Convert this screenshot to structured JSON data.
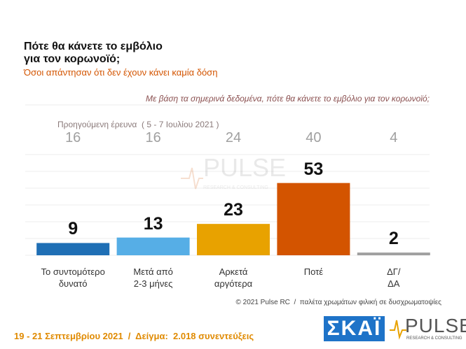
{
  "chart_data": {
    "type": "bar",
    "title": [
      "Πότε θα κάνετε το εμβόλιο",
      "για τον κορωνοϊό;"
    ],
    "subtitle": "Όσοι απάντησαν ότι δεν έχουν κάνει καμία δόση",
    "question": "Με βάση τα σημερινά δεδομένα, πότε θα κάνετε το εμβόλιο για τον κορωνοϊό;",
    "categories": [
      "Το συντομότερο\nδυνατό",
      "Μετά από\n2-3 μήνες",
      "Αρκετά\nαργότερα",
      "Ποτέ",
      "ΔΓ/\nΔΑ"
    ],
    "values": [
      9,
      13,
      23,
      53,
      2
    ],
    "colors": [
      "#1f6fb5",
      "#56aee6",
      "#e8a200",
      "#d35400",
      "#a0a0a0"
    ],
    "previous": {
      "label": "Προηγούμενη έρευνα  ( 5 - 7 Ιουλίου 2021 )",
      "values": [
        16,
        16,
        24,
        40,
        4
      ]
    },
    "ylim": [
      0,
      60
    ],
    "footnote": "© 2021 Pulse RC  /  παλέτα χρωμάτων φιλική σε δυσχρωματοψίες",
    "bottom_note": "19 - 21 Σεπτεμβρίου 2021  /  Δείγμα:  2.018 συνεντεύξεις",
    "logos": {
      "skai": "ΣΚΑΪ",
      "pulse": "PULSE",
      "pulse_sub": "RESEARCH & CONSULTING"
    }
  }
}
